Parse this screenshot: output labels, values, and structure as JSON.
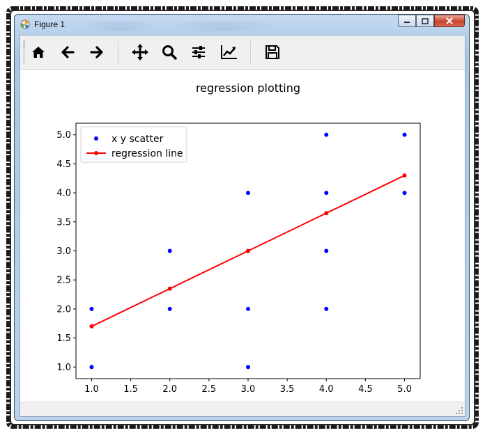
{
  "window": {
    "title": "Figure 1"
  },
  "toolbar": {
    "tools": [
      "home-icon",
      "back-arrow-icon",
      "forward-arrow-icon",
      "pan-icon",
      "zoom-icon",
      "configure-subplots-icon",
      "edit-axis-icon",
      "save-icon"
    ]
  },
  "colors": {
    "scatter": "#0000ff",
    "regression": "#ff0000",
    "close_button": "#c8452e"
  },
  "chart_data": {
    "type": "scatter",
    "title": "regression plotting",
    "xlabel": "",
    "ylabel": "",
    "xlim": [
      0.8,
      5.2
    ],
    "ylim": [
      0.8,
      5.2
    ],
    "x_ticks": [
      "1.0",
      "1.5",
      "2.0",
      "2.5",
      "3.0",
      "3.5",
      "4.0",
      "4.5",
      "5.0"
    ],
    "y_ticks": [
      "1.0",
      "1.5",
      "2.0",
      "2.5",
      "3.0",
      "3.5",
      "4.0",
      "4.5",
      "5.0"
    ],
    "grid": false,
    "legend": "upper-left",
    "series": [
      {
        "name": "x y scatter",
        "kind": "scatter",
        "color": "#0000ff",
        "points": [
          [
            1,
            1
          ],
          [
            1,
            2
          ],
          [
            2,
            2
          ],
          [
            2,
            3
          ],
          [
            3,
            1
          ],
          [
            3,
            2
          ],
          [
            3,
            3
          ],
          [
            3,
            4
          ],
          [
            4,
            2
          ],
          [
            4,
            3
          ],
          [
            4,
            4
          ],
          [
            4,
            5
          ],
          [
            5,
            4
          ],
          [
            5,
            5
          ]
        ]
      },
      {
        "name": "regression line",
        "kind": "line",
        "color": "#ff0000",
        "points": [
          [
            1,
            1.7
          ],
          [
            2,
            2.35
          ],
          [
            3,
            3.0
          ],
          [
            4,
            3.65
          ],
          [
            5,
            4.3
          ]
        ]
      }
    ]
  }
}
